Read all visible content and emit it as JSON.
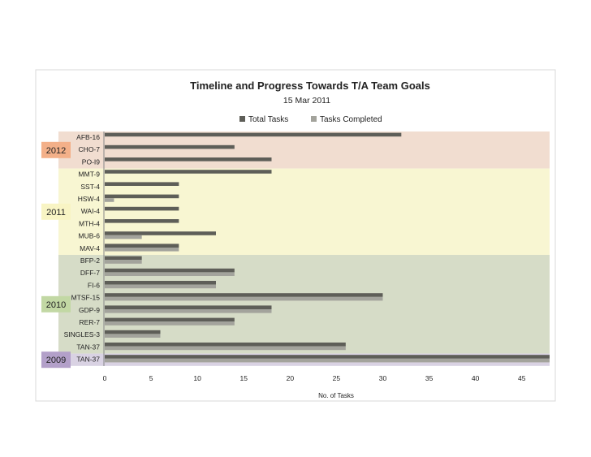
{
  "chart_data": {
    "type": "bar",
    "orientation": "horizontal",
    "title": "Timeline and Progress Towards T/A Team Goals",
    "subtitle": "15 Mar 2011",
    "xlabel": "No. of Tasks",
    "ylabel": "",
    "xlim": [
      0,
      48
    ],
    "xticks": [
      0,
      5,
      10,
      15,
      20,
      25,
      30,
      35,
      40,
      45
    ],
    "grid": false,
    "legend_position": "top",
    "categories": [
      "AFB-16",
      "CHO-7",
      "PO-I9",
      "MMT-9",
      "SST-4",
      "HSW-4",
      "WAI-4",
      "MTH-4",
      "MUB-6",
      "MAV-4",
      "BFP-2",
      "DFF-7",
      "FI-6",
      "MTSF-15",
      "GDP-9",
      "RER-7",
      "SINGLES-3",
      "TAN-37",
      "TAN-37"
    ],
    "series": [
      {
        "name": "Total Tasks",
        "color": "#5e5e58",
        "values": [
          32,
          14,
          18,
          18,
          8,
          8,
          8,
          8,
          12,
          8,
          4,
          14,
          12,
          30,
          18,
          14,
          6,
          26,
          48
        ]
      },
      {
        "name": "Tasks Completed",
        "color": "#a3a39c",
        "values": [
          0,
          0,
          0,
          0,
          0,
          1,
          0,
          0,
          4,
          8,
          4,
          14,
          12,
          30,
          18,
          14,
          6,
          26,
          48
        ]
      }
    ],
    "year_groups": [
      {
        "label": "2012",
        "start": 0,
        "end": 2,
        "band_color": "#f1ddd0",
        "tag_color": "#f3b089"
      },
      {
        "label": "2011",
        "start": 3,
        "end": 9,
        "band_color": "#f8f6d2",
        "tag_color": "#f8f4c4"
      },
      {
        "label": "2010",
        "start": 10,
        "end": 17,
        "band_color": "#d6dcc7",
        "tag_color": "#c2d8a4"
      },
      {
        "label": "2009",
        "start": 18,
        "end": 18,
        "band_color": "#d9d2e3",
        "tag_color": "#b3a0c9"
      }
    ]
  }
}
